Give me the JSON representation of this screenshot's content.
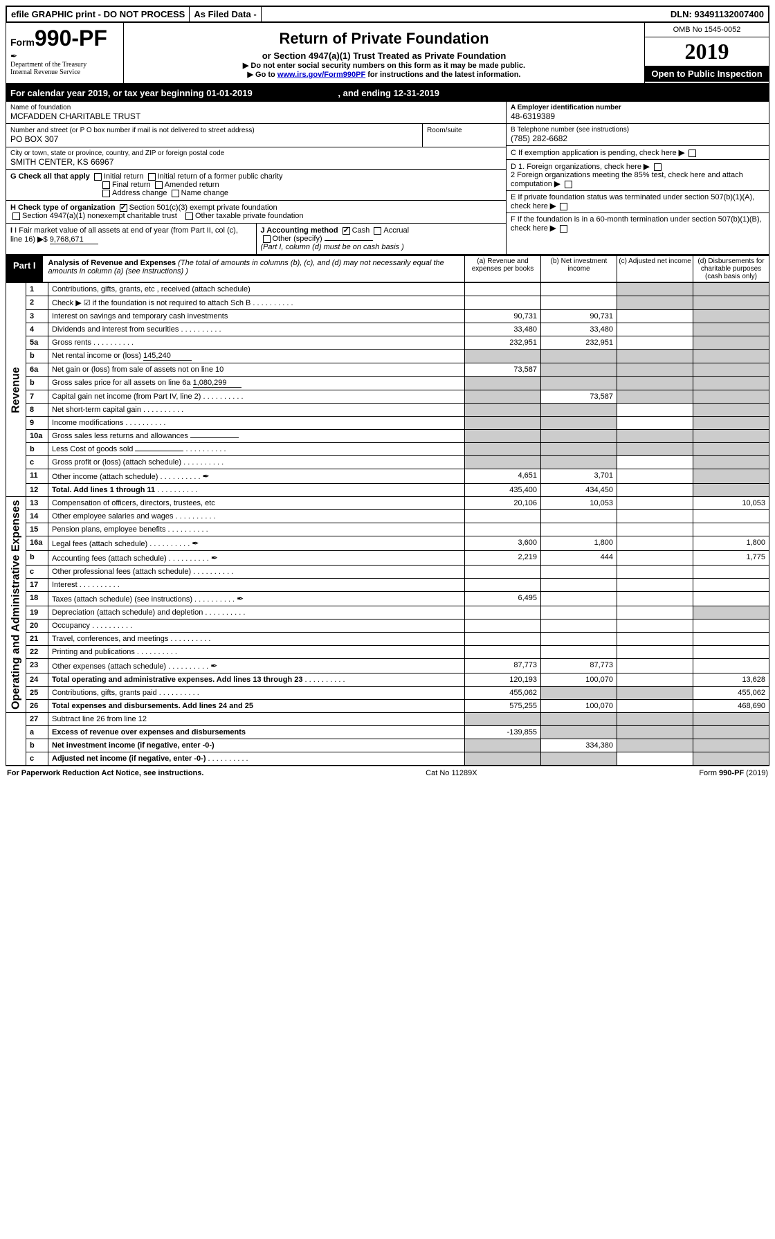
{
  "header": {
    "efile": "efile GRAPHIC print - DO NOT PROCESS",
    "asfiled": "As Filed Data -",
    "dln": "DLN: 93491132007400"
  },
  "form": {
    "prefix": "Form",
    "number": "990-PF",
    "dept1": "Department of the Treasury",
    "dept2": "Internal Revenue Service",
    "title": "Return of Private Foundation",
    "subtitle": "or Section 4947(a)(1) Trust Treated as Private Foundation",
    "inst1": "▶ Do not enter social security numbers on this form as it may be made public.",
    "inst2_pre": "▶ Go to ",
    "inst2_link": "www.irs.gov/Form990PF",
    "inst2_post": " for instructions and the latest information.",
    "omb": "OMB No 1545-0052",
    "year": "2019",
    "open_pub": "Open to Public Inspection"
  },
  "calyear": {
    "text": "For calendar year 2019, or tax year beginning 01-01-2019",
    "ending": ", and ending 12-31-2019"
  },
  "entity": {
    "name_label": "Name of foundation",
    "name": "MCFADDEN CHARITABLE TRUST",
    "addr_label": "Number and street (or P O  box number if mail is not delivered to street address)",
    "addr": "PO BOX 307",
    "room_label": "Room/suite",
    "city_label": "City or town, state or province, country, and ZIP or foreign postal code",
    "city": "SMITH CENTER, KS  66967",
    "a_label": "A Employer identification number",
    "a_val": "48-6319389",
    "b_label": "B Telephone number (see instructions)",
    "b_val": "(785) 282-6682",
    "c_label": "C If exemption application is pending, check here"
  },
  "checks": {
    "g_label": "G Check all that apply",
    "g1": "Initial return",
    "g2": "Initial return of a former public charity",
    "g3": "Final return",
    "g4": "Amended return",
    "g5": "Address change",
    "g6": "Name change",
    "h_label": "H Check type of organization",
    "h1": "Section 501(c)(3) exempt private foundation",
    "h2": "Section 4947(a)(1) nonexempt charitable trust",
    "h3": "Other taxable private foundation",
    "d1": "D 1. Foreign organizations, check here",
    "d2": "2 Foreign organizations meeting the 85% test, check here and attach computation",
    "e": "E  If private foundation status was terminated under section 507(b)(1)(A), check here",
    "f": "F  If the foundation is in a 60-month termination under section 507(b)(1)(B), check here",
    "i_label": "I Fair market value of all assets at end of year (from Part II, col  (c), line 16)",
    "i_val": "9,768,671",
    "j_label": "J Accounting method",
    "j1": "Cash",
    "j2": "Accrual",
    "j3": "Other (specify)",
    "j_note": "(Part I, column (d) must be on cash basis )"
  },
  "part1": {
    "label": "Part I",
    "title": "Analysis of Revenue and Expenses",
    "note": "(The total of amounts in columns (b), (c), and (d) may not necessarily equal the amounts in column (a) (see instructions) )",
    "col_a": "(a) Revenue and expenses per books",
    "col_b": "(b) Net investment income",
    "col_c": "(c) Adjusted net income",
    "col_d": "(d) Disbursements for charitable purposes (cash basis only)"
  },
  "sections": {
    "revenue": "Revenue",
    "expenses": "Operating and Administrative Expenses"
  },
  "rows": [
    {
      "sec": "rev",
      "n": "1",
      "d": "Contributions, gifts, grants, etc , received (attach schedule)",
      "a": "",
      "b": "",
      "c": "s",
      "dd": "s"
    },
    {
      "sec": "rev",
      "n": "2",
      "d": "Check ▶ ☑ if the foundation is not required to attach Sch  B",
      "dots": true,
      "a": "",
      "b": "",
      "c": "s",
      "dd": "s"
    },
    {
      "sec": "rev",
      "n": "3",
      "d": "Interest on savings and temporary cash investments",
      "a": "90,731",
      "b": "90,731",
      "c": "",
      "dd": "s"
    },
    {
      "sec": "rev",
      "n": "4",
      "d": "Dividends and interest from securities",
      "dots": true,
      "a": "33,480",
      "b": "33,480",
      "c": "",
      "dd": "s"
    },
    {
      "sec": "rev",
      "n": "5a",
      "d": "Gross rents",
      "dots": true,
      "a": "232,951",
      "b": "232,951",
      "c": "",
      "dd": "s"
    },
    {
      "sec": "rev",
      "n": "b",
      "d": "Net rental income or (loss)",
      "inline": "145,240",
      "a": "s",
      "b": "s",
      "c": "s",
      "dd": "s"
    },
    {
      "sec": "rev",
      "n": "6a",
      "d": "Net gain or (loss) from sale of assets not on line 10",
      "a": "73,587",
      "b": "s",
      "c": "s",
      "dd": "s"
    },
    {
      "sec": "rev",
      "n": "b",
      "d": "Gross sales price for all assets on line 6a",
      "inline": "1,080,299",
      "a": "s",
      "b": "s",
      "c": "s",
      "dd": "s"
    },
    {
      "sec": "rev",
      "n": "7",
      "d": "Capital gain net income (from Part IV, line 2)",
      "dots": true,
      "a": "s",
      "b": "73,587",
      "c": "s",
      "dd": "s"
    },
    {
      "sec": "rev",
      "n": "8",
      "d": "Net short-term capital gain",
      "dots": true,
      "a": "s",
      "b": "s",
      "c": "",
      "dd": "s"
    },
    {
      "sec": "rev",
      "n": "9",
      "d": "Income modifications",
      "dots": true,
      "a": "s",
      "b": "s",
      "c": "",
      "dd": "s"
    },
    {
      "sec": "rev",
      "n": "10a",
      "d": "Gross sales less returns and allowances",
      "inline": "",
      "a": "s",
      "b": "s",
      "c": "s",
      "dd": "s"
    },
    {
      "sec": "rev",
      "n": "b",
      "d": "Less  Cost of goods sold",
      "dots": true,
      "inline": "",
      "a": "s",
      "b": "s",
      "c": "s",
      "dd": "s"
    },
    {
      "sec": "rev",
      "n": "c",
      "d": "Gross profit or (loss) (attach schedule)",
      "dots": true,
      "a": "s",
      "b": "s",
      "c": "",
      "dd": "s"
    },
    {
      "sec": "rev",
      "n": "11",
      "d": "Other income (attach schedule)",
      "dots": true,
      "icon": true,
      "a": "4,651",
      "b": "3,701",
      "c": "",
      "dd": "s"
    },
    {
      "sec": "rev",
      "n": "12",
      "d": "Total. Add lines 1 through 11",
      "dots": true,
      "bold": true,
      "a": "435,400",
      "b": "434,450",
      "c": "",
      "dd": "s"
    },
    {
      "sec": "exp",
      "n": "13",
      "d": "Compensation of officers, directors, trustees, etc",
      "a": "20,106",
      "b": "10,053",
      "c": "",
      "dd": "10,053"
    },
    {
      "sec": "exp",
      "n": "14",
      "d": "Other employee salaries and wages",
      "dots": true,
      "a": "",
      "b": "",
      "c": "",
      "dd": ""
    },
    {
      "sec": "exp",
      "n": "15",
      "d": "Pension plans, employee benefits",
      "dots": true,
      "a": "",
      "b": "",
      "c": "",
      "dd": ""
    },
    {
      "sec": "exp",
      "n": "16a",
      "d": "Legal fees (attach schedule)",
      "dots": true,
      "icon": true,
      "a": "3,600",
      "b": "1,800",
      "c": "",
      "dd": "1,800"
    },
    {
      "sec": "exp",
      "n": "b",
      "d": "Accounting fees (attach schedule)",
      "dots": true,
      "icon": true,
      "a": "2,219",
      "b": "444",
      "c": "",
      "dd": "1,775"
    },
    {
      "sec": "exp",
      "n": "c",
      "d": "Other professional fees (attach schedule)",
      "dots": true,
      "a": "",
      "b": "",
      "c": "",
      "dd": ""
    },
    {
      "sec": "exp",
      "n": "17",
      "d": "Interest",
      "dots": true,
      "a": "",
      "b": "",
      "c": "",
      "dd": ""
    },
    {
      "sec": "exp",
      "n": "18",
      "d": "Taxes (attach schedule) (see instructions)",
      "dots": true,
      "icon": true,
      "a": "6,495",
      "b": "",
      "c": "",
      "dd": ""
    },
    {
      "sec": "exp",
      "n": "19",
      "d": "Depreciation (attach schedule) and depletion",
      "dots": true,
      "a": "",
      "b": "",
      "c": "",
      "dd": "s"
    },
    {
      "sec": "exp",
      "n": "20",
      "d": "Occupancy",
      "dots": true,
      "a": "",
      "b": "",
      "c": "",
      "dd": ""
    },
    {
      "sec": "exp",
      "n": "21",
      "d": "Travel, conferences, and meetings",
      "dots": true,
      "a": "",
      "b": "",
      "c": "",
      "dd": ""
    },
    {
      "sec": "exp",
      "n": "22",
      "d": "Printing and publications",
      "dots": true,
      "a": "",
      "b": "",
      "c": "",
      "dd": ""
    },
    {
      "sec": "exp",
      "n": "23",
      "d": "Other expenses (attach schedule)",
      "dots": true,
      "icon": true,
      "a": "87,773",
      "b": "87,773",
      "c": "",
      "dd": ""
    },
    {
      "sec": "exp",
      "n": "24",
      "d": "Total operating and administrative expenses. Add lines 13 through 23",
      "dots": true,
      "bold": true,
      "a": "120,193",
      "b": "100,070",
      "c": "",
      "dd": "13,628"
    },
    {
      "sec": "exp",
      "n": "25",
      "d": "Contributions, gifts, grants paid",
      "dots": true,
      "a": "455,062",
      "b": "s",
      "c": "s",
      "dd": "455,062"
    },
    {
      "sec": "exp",
      "n": "26",
      "d": "Total expenses and disbursements. Add lines 24 and 25",
      "bold": true,
      "a": "575,255",
      "b": "100,070",
      "c": "",
      "dd": "468,690"
    },
    {
      "sec": "bot",
      "n": "27",
      "d": "Subtract line 26 from line 12",
      "a": "s",
      "b": "s",
      "c": "s",
      "dd": "s"
    },
    {
      "sec": "bot",
      "n": "a",
      "d": "Excess of revenue over expenses and disbursements",
      "bold": true,
      "a": "-139,855",
      "b": "s",
      "c": "s",
      "dd": "s"
    },
    {
      "sec": "bot",
      "n": "b",
      "d": "Net investment income (if negative, enter -0-)",
      "bold": true,
      "a": "s",
      "b": "334,380",
      "c": "s",
      "dd": "s"
    },
    {
      "sec": "bot",
      "n": "c",
      "d": "Adjusted net income (if negative, enter -0-)",
      "dots": true,
      "bold": true,
      "a": "s",
      "b": "s",
      "c": "",
      "dd": "s"
    }
  ],
  "footer": {
    "left": "For Paperwork Reduction Act Notice, see instructions.",
    "mid": "Cat  No  11289X",
    "right": "Form 990-PF (2019)"
  }
}
